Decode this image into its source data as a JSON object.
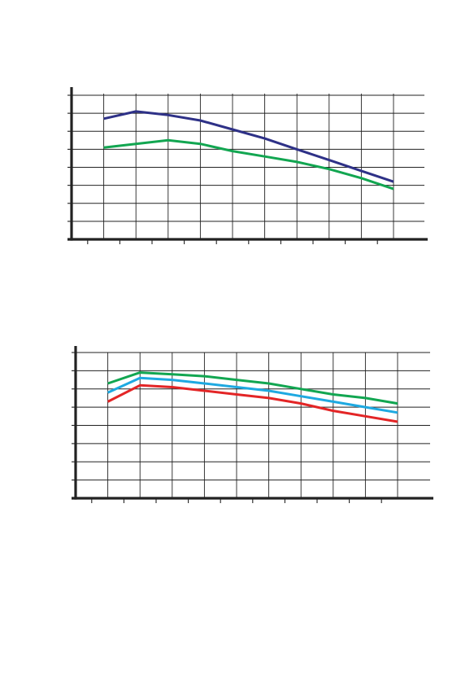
{
  "chart_data": [
    {
      "type": "line",
      "x": [
        1,
        2,
        3,
        4,
        5,
        6,
        7,
        8,
        9,
        10
      ],
      "xlim": [
        0,
        11
      ],
      "ylim": [
        0,
        8
      ],
      "grid": true,
      "series": [
        {
          "color": "#2e3187",
          "values": [
            6.7,
            7.1,
            6.9,
            6.6,
            6.1,
            5.6,
            5.0,
            4.4,
            3.8,
            3.2
          ]
        },
        {
          "color": "#12a651",
          "values": [
            5.1,
            5.3,
            5.5,
            5.3,
            4.9,
            4.6,
            4.3,
            3.9,
            3.4,
            2.8
          ]
        }
      ]
    },
    {
      "type": "line",
      "x": [
        1,
        2,
        3,
        4,
        5,
        6,
        7,
        8,
        9,
        10
      ],
      "xlim": [
        0,
        11
      ],
      "ylim": [
        0,
        8
      ],
      "grid": true,
      "series": [
        {
          "color": "#12a651",
          "values": [
            6.3,
            6.9,
            6.8,
            6.7,
            6.5,
            6.3,
            6.0,
            5.7,
            5.5,
            5.2
          ]
        },
        {
          "color": "#1ea9e1",
          "values": [
            5.8,
            6.6,
            6.5,
            6.3,
            6.1,
            5.9,
            5.6,
            5.3,
            5.0,
            4.7
          ]
        },
        {
          "color": "#e32526",
          "values": [
            5.3,
            6.2,
            6.1,
            5.9,
            5.7,
            5.5,
            5.2,
            4.8,
            4.5,
            4.2
          ]
        }
      ]
    }
  ]
}
